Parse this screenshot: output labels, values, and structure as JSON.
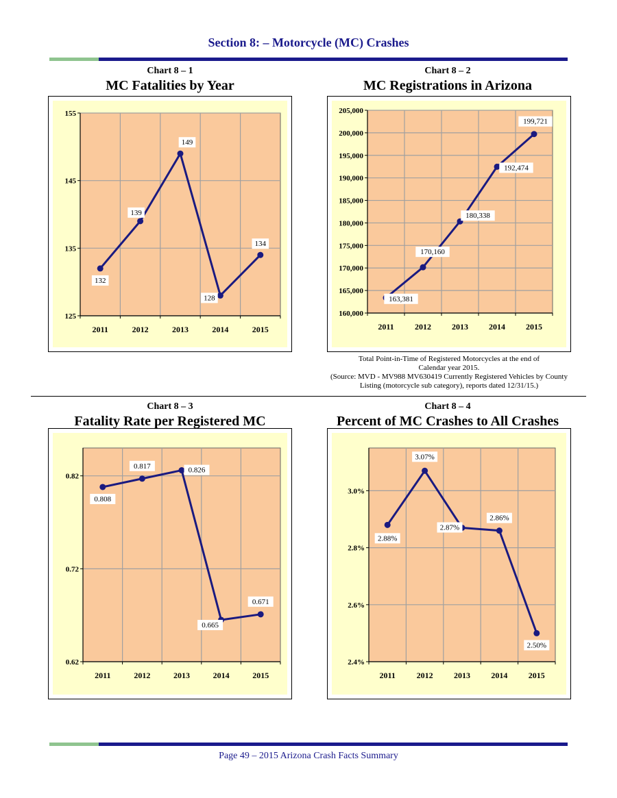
{
  "header": {
    "section_title": "Section 8: – Motorcycle (MC) Crashes"
  },
  "note": {
    "line1": "Total Point-in-Time of Registered Motorcycles at the end of",
    "line2": "Calendar year 2015.",
    "line3": "(Source: MVD - MV988 MV630419 Currently Registered Vehicles by County",
    "line4": "Listing (motorcycle sub category), reports dated 12/31/15.)"
  },
  "footer": {
    "text": "Page 49 – 2015 Arizona Crash Facts Summary"
  },
  "colors": {
    "plot_bg": "#fac99c",
    "outer_bg": "#ffffcc",
    "line": "#1a1a80",
    "grid": "#a0a0a0",
    "rule_green": "#8fc48f",
    "rule_blue": "#1a1a8c"
  },
  "chart_data": [
    {
      "number": "Chart 8 – 1",
      "title": "MC Fatalities by Year",
      "type": "line",
      "categories": [
        "2011",
        "2012",
        "2013",
        "2014",
        "2015"
      ],
      "values": [
        132,
        139,
        149,
        128,
        134
      ],
      "data_labels": [
        "132",
        "139",
        "149",
        "128",
        "134"
      ],
      "ylim": [
        125,
        155
      ],
      "yticks": [
        "125",
        "135",
        "145",
        "155"
      ],
      "ytick_values": [
        125,
        135,
        145,
        155
      ],
      "grid": true
    },
    {
      "number": "Chart 8 – 2",
      "title": "MC Registrations in Arizona",
      "type": "line",
      "categories": [
        "2011",
        "2012",
        "2013",
        "2014",
        "2015"
      ],
      "values": [
        163381,
        170160,
        180338,
        192474,
        199721
      ],
      "data_labels": [
        "163,381",
        "170,160",
        "180,338",
        "192,474",
        "199,721"
      ],
      "ylim": [
        160000,
        205000
      ],
      "yticks": [
        "160,000",
        "165,000",
        "170,000",
        "175,000",
        "180,000",
        "185,000",
        "190,000",
        "195,000",
        "200,000",
        "205,000"
      ],
      "ytick_values": [
        160000,
        165000,
        170000,
        175000,
        180000,
        185000,
        190000,
        195000,
        200000,
        205000
      ],
      "grid": true
    },
    {
      "number": "Chart 8 – 3",
      "title": "Fatality Rate per Registered MC",
      "type": "line",
      "categories": [
        "2011",
        "2012",
        "2013",
        "2014",
        "2015"
      ],
      "values": [
        0.808,
        0.817,
        0.826,
        0.665,
        0.671
      ],
      "data_labels": [
        "0.808",
        "0.817",
        "0.826",
        "0.665",
        "0.671"
      ],
      "ylim": [
        0.62,
        0.85
      ],
      "yticks": [
        "0.62",
        "0.72",
        "0.82"
      ],
      "ytick_values": [
        0.62,
        0.72,
        0.82
      ],
      "grid": true
    },
    {
      "number": "Chart 8 – 4",
      "title": "Percent of MC Crashes to All Crashes",
      "type": "line",
      "categories": [
        "2011",
        "2012",
        "2013",
        "2014",
        "2015"
      ],
      "values": [
        2.88,
        3.07,
        2.87,
        2.86,
        2.5
      ],
      "data_labels": [
        "2.88%",
        "3.07%",
        "2.87%",
        "2.86%",
        "2.50%"
      ],
      "ylim": [
        2.4,
        3.15
      ],
      "yticks": [
        "2.4%",
        "2.6%",
        "2.8%",
        "3.0%"
      ],
      "ytick_values": [
        2.4,
        2.6,
        2.8,
        3.0
      ],
      "grid": true
    }
  ]
}
